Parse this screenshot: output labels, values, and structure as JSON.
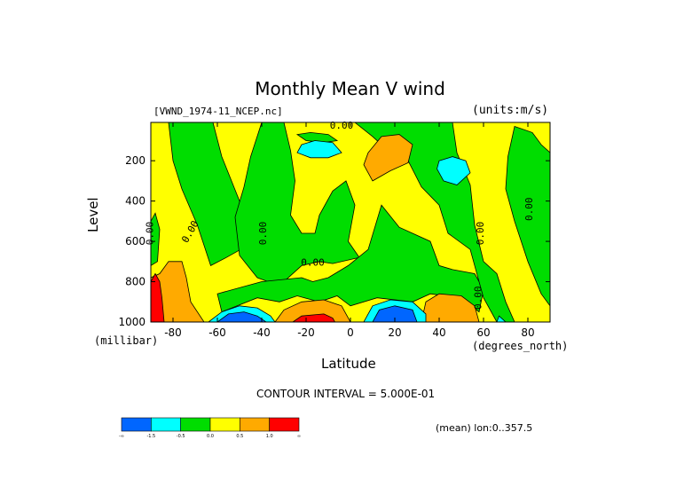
{
  "chart_data": {
    "type": "heatmap",
    "title": "Monthly Mean V wind",
    "dataset": "[VWND_1974-11_NCEP.nc]",
    "units": "(units:m/s)",
    "xlabel": "Latitude",
    "x_units": "(degrees_north)",
    "ylabel": "Level",
    "y_units": "(millibar)",
    "xlim": [
      -90,
      90
    ],
    "ylim": [
      1000,
      10
    ],
    "x_ticks": [
      "-80",
      "-60",
      "-40",
      "-20",
      "0",
      "20",
      "40",
      "60",
      "80"
    ],
    "x_tick_values": [
      -80,
      -60,
      -40,
      -20,
      0,
      20,
      40,
      60,
      80
    ],
    "y_ticks": [
      "200",
      "400",
      "600",
      "800",
      "1000"
    ],
    "y_tick_values": [
      200,
      400,
      600,
      800,
      1000
    ],
    "contour_interval_label": "CONTOUR INTERVAL = 5.000E-01",
    "contour_labels": [
      "0.00"
    ],
    "mean_label": "(mean) lon:0..357.5",
    "colorbar": {
      "labels": [
        "-∞",
        "-1.5",
        "-0.5",
        "0.0",
        "0.5",
        "1.0",
        "∞"
      ],
      "colors": [
        "#0066ff",
        "#00ffff",
        "#00dd00",
        "#ffff00",
        "#ffaa00",
        "#ff0000"
      ]
    },
    "regions": [
      {
        "level": "yellow",
        "color": "#ffff00",
        "pts": [
          [
            -90,
            1000
          ],
          [
            -90,
            10
          ],
          [
            90,
            10
          ],
          [
            90,
            1000
          ]
        ]
      },
      {
        "level": "green",
        "color": "#00dd00",
        "pts": [
          [
            -82,
            10
          ],
          [
            -62,
            10
          ],
          [
            -58,
            180
          ],
          [
            -50,
            400
          ],
          [
            -43,
            600
          ],
          [
            -56,
            680
          ],
          [
            -63,
            720
          ],
          [
            -69,
            520
          ],
          [
            -76,
            340
          ],
          [
            -80,
            200
          ]
        ]
      },
      {
        "level": "green",
        "color": "#00dd00",
        "pts": [
          [
            -90,
            500
          ],
          [
            -88,
            460
          ],
          [
            -86,
            540
          ],
          [
            -87,
            700
          ],
          [
            -90,
            720
          ]
        ]
      },
      {
        "level": "green",
        "color": "#00dd00",
        "pts": [
          [
            -45,
            180
          ],
          [
            -40,
            10
          ],
          [
            -30,
            10
          ],
          [
            -27,
            150
          ],
          [
            -25,
            300
          ],
          [
            -27,
            470
          ],
          [
            -22,
            560
          ],
          [
            -16,
            560
          ],
          [
            -14,
            470
          ],
          [
            -8,
            350
          ],
          [
            -2,
            300
          ],
          [
            2,
            420
          ],
          [
            -1,
            600
          ],
          [
            4,
            680
          ],
          [
            -8,
            710
          ],
          [
            -14,
            700
          ],
          [
            -22,
            720
          ],
          [
            -32,
            820
          ],
          [
            -42,
            780
          ],
          [
            -50,
            670
          ],
          [
            -52,
            480
          ],
          [
            -48,
            330
          ]
        ]
      },
      {
        "level": "green",
        "color": "#00dd00",
        "pts": [
          [
            -60,
            860
          ],
          [
            -40,
            800
          ],
          [
            -22,
            780
          ],
          [
            -17,
            800
          ],
          [
            -10,
            780
          ],
          [
            -1,
            720
          ],
          [
            8,
            640
          ],
          [
            14,
            420
          ],
          [
            22,
            530
          ],
          [
            36,
            600
          ],
          [
            40,
            720
          ],
          [
            46,
            740
          ],
          [
            56,
            760
          ],
          [
            60,
            840
          ],
          [
            58,
            950
          ],
          [
            50,
            880
          ],
          [
            36,
            860
          ],
          [
            28,
            900
          ],
          [
            12,
            880
          ],
          [
            0,
            920
          ],
          [
            -6,
            870
          ],
          [
            -14,
            900
          ],
          [
            -24,
            870
          ],
          [
            -32,
            900
          ],
          [
            -42,
            880
          ],
          [
            -58,
            950
          ]
        ]
      },
      {
        "level": "green",
        "color": "#00dd00",
        "pts": [
          [
            2,
            10
          ],
          [
            46,
            10
          ],
          [
            48,
            160
          ],
          [
            54,
            320
          ],
          [
            56,
            520
          ],
          [
            60,
            700
          ],
          [
            66,
            760
          ],
          [
            70,
            900
          ],
          [
            74,
            1000
          ],
          [
            66,
            1000
          ],
          [
            60,
            880
          ],
          [
            54,
            640
          ],
          [
            44,
            560
          ],
          [
            40,
            420
          ],
          [
            32,
            330
          ],
          [
            26,
            200
          ],
          [
            16,
            140
          ],
          [
            10,
            80
          ]
        ]
      },
      {
        "level": "green",
        "color": "#00dd00",
        "pts": [
          [
            74,
            30
          ],
          [
            82,
            60
          ],
          [
            86,
            120
          ],
          [
            90,
            160
          ],
          [
            90,
            920
          ],
          [
            86,
            860
          ],
          [
            80,
            700
          ],
          [
            74,
            500
          ],
          [
            70,
            340
          ],
          [
            71,
            180
          ]
        ]
      },
      {
        "level": "green",
        "color": "#00dd00",
        "pts": [
          [
            -24,
            70
          ],
          [
            -18,
            60
          ],
          [
            -10,
            70
          ],
          [
            -6,
            100
          ],
          [
            -12,
            110
          ],
          [
            -20,
            100
          ]
        ]
      },
      {
        "level": "cyan",
        "color": "#00ffff",
        "pts": [
          [
            -22,
            120
          ],
          [
            -16,
            100
          ],
          [
            -8,
            110
          ],
          [
            -4,
            160
          ],
          [
            -10,
            185
          ],
          [
            -18,
            185
          ],
          [
            -24,
            160
          ]
        ]
      },
      {
        "level": "cyan",
        "color": "#00ffff",
        "pts": [
          [
            40,
            200
          ],
          [
            46,
            180
          ],
          [
            52,
            200
          ],
          [
            54,
            260
          ],
          [
            48,
            320
          ],
          [
            42,
            300
          ],
          [
            39,
            240
          ]
        ]
      },
      {
        "level": "orange",
        "color": "#ffaa00",
        "pts": [
          [
            8,
            160
          ],
          [
            14,
            80
          ],
          [
            22,
            70
          ],
          [
            28,
            120
          ],
          [
            26,
            210
          ],
          [
            18,
            250
          ],
          [
            10,
            300
          ],
          [
            6,
            220
          ]
        ]
      },
      {
        "level": "orange",
        "color": "#ffaa00",
        "pts": [
          [
            -90,
            780
          ],
          [
            -86,
            760
          ],
          [
            -82,
            700
          ],
          [
            -76,
            700
          ],
          [
            -74,
            780
          ],
          [
            -72,
            900
          ],
          [
            -66,
            1000
          ],
          [
            -88,
            1000
          ],
          [
            -90,
            950
          ]
        ]
      },
      {
        "level": "orange",
        "color": "#ffaa00",
        "pts": [
          [
            -34,
            1000
          ],
          [
            -30,
            940
          ],
          [
            -22,
            900
          ],
          [
            -12,
            890
          ],
          [
            -4,
            920
          ],
          [
            -2,
            960
          ],
          [
            0,
            1000
          ]
        ]
      },
      {
        "level": "orange",
        "color": "#ffaa00",
        "pts": [
          [
            32,
            1000
          ],
          [
            34,
            900
          ],
          [
            40,
            860
          ],
          [
            50,
            870
          ],
          [
            56,
            920
          ],
          [
            58,
            1000
          ]
        ]
      },
      {
        "level": "red",
        "color": "#ff0000",
        "pts": [
          [
            -90,
            800
          ],
          [
            -88,
            760
          ],
          [
            -86,
            800
          ],
          [
            -85,
            880
          ],
          [
            -84,
            1000
          ],
          [
            -90,
            1000
          ]
        ]
      },
      {
        "level": "red",
        "color": "#ff0000",
        "pts": [
          [
            -26,
            1000
          ],
          [
            -22,
            970
          ],
          [
            -12,
            960
          ],
          [
            -8,
            980
          ],
          [
            -7,
            1000
          ]
        ]
      },
      {
        "level": "cyan",
        "color": "#00ffff",
        "pts": [
          [
            -64,
            1000
          ],
          [
            -58,
            950
          ],
          [
            -50,
            920
          ],
          [
            -42,
            930
          ],
          [
            -36,
            970
          ],
          [
            -34,
            1000
          ]
        ]
      },
      {
        "level": "cyan",
        "color": "#00ffff",
        "pts": [
          [
            6,
            1000
          ],
          [
            10,
            920
          ],
          [
            18,
            890
          ],
          [
            28,
            900
          ],
          [
            34,
            960
          ],
          [
            34,
            1000
          ]
        ]
      },
      {
        "level": "cyan",
        "color": "#00ffff",
        "pts": [
          [
            66,
            1000
          ],
          [
            67,
            970
          ],
          [
            70,
            1000
          ]
        ]
      },
      {
        "level": "blue",
        "color": "#0066ff",
        "pts": [
          [
            -60,
            1000
          ],
          [
            -55,
            960
          ],
          [
            -48,
            950
          ],
          [
            -42,
            970
          ],
          [
            -38,
            1000
          ]
        ]
      },
      {
        "level": "blue",
        "color": "#0066ff",
        "pts": [
          [
            10,
            1000
          ],
          [
            13,
            940
          ],
          [
            20,
            920
          ],
          [
            28,
            940
          ],
          [
            30,
            1000
          ]
        ]
      }
    ]
  }
}
